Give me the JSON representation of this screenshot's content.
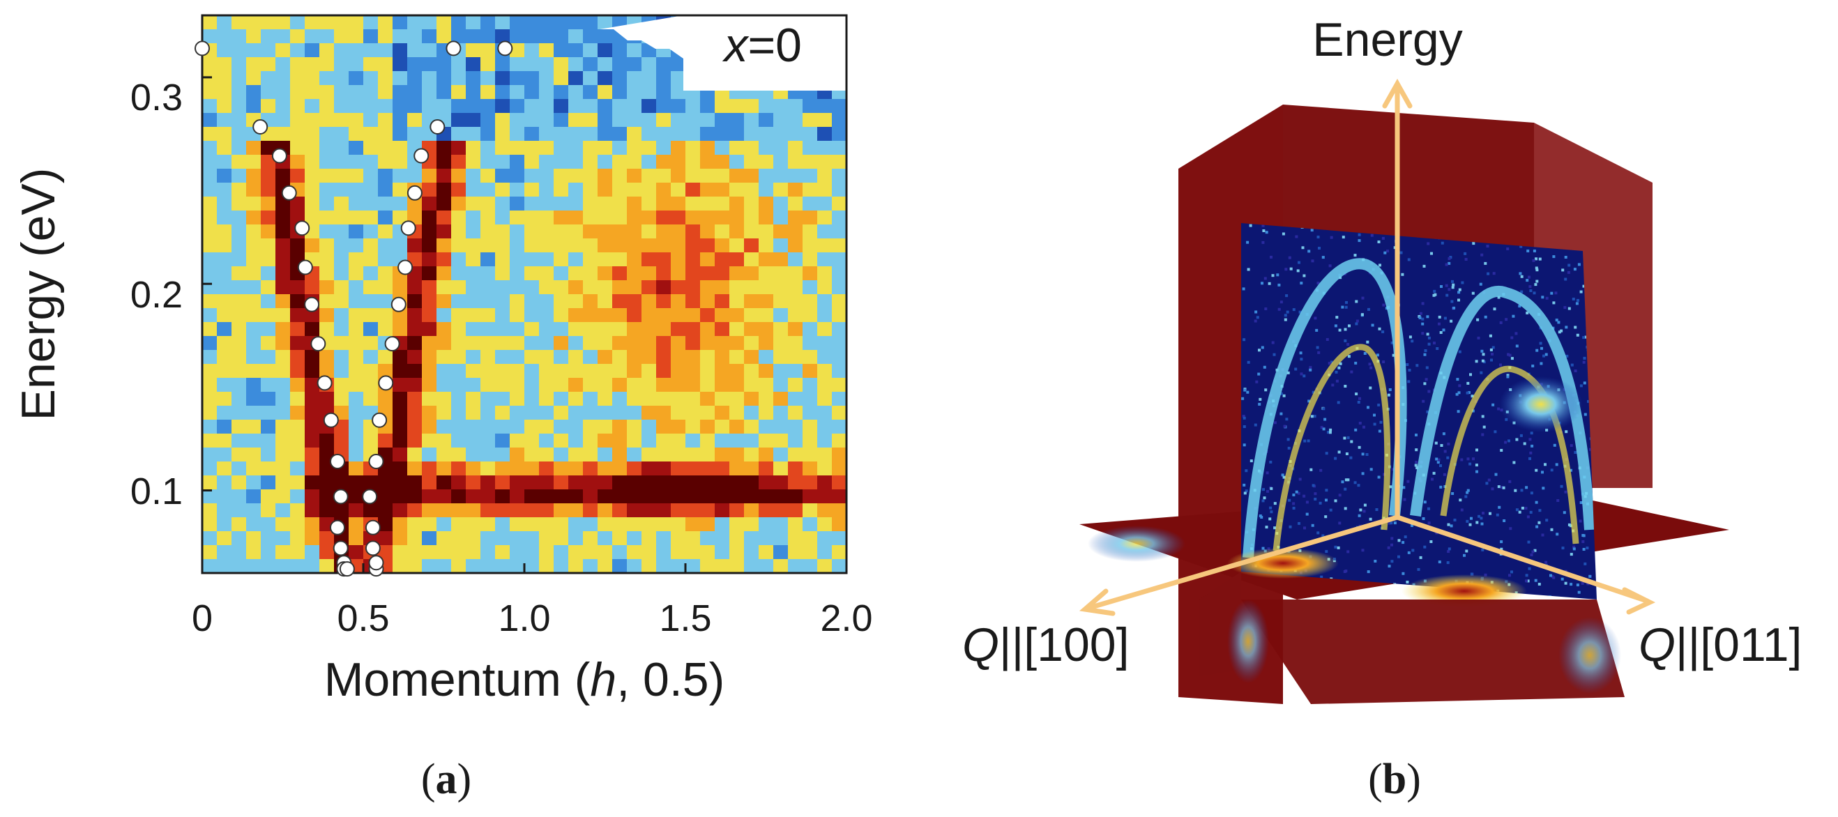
{
  "panel_a": {
    "inset_label": {
      "var": "x",
      "rest": "=0"
    },
    "ylabel": "Energy (eV)",
    "xlabel": {
      "prefix": "Momentum (",
      "var": "h",
      "suffix": ", 0.5)"
    },
    "x_ticks": [
      "0",
      "0.5",
      "1.0",
      "1.5",
      "2.0"
    ],
    "y_ticks": [
      "0.3",
      "0.2",
      "0.1"
    ],
    "caption": {
      "open": "(",
      "letter": "a",
      "close": ")"
    }
  },
  "panel_b": {
    "axis_energy": "Energy",
    "axis_q100": {
      "var": "Q",
      "rest": "||[100]"
    },
    "axis_q011": {
      "var": "Q",
      "rest": "||[011]"
    },
    "caption": {
      "open": "(",
      "letter": "b",
      "close": ")"
    }
  },
  "chart_data": {
    "type": "heatmap",
    "xlim": [
      0,
      2.0
    ],
    "ylim": [
      0.06,
      0.33
    ],
    "colormap": [
      "#00007f",
      "#1e50b4",
      "#3c8cdc",
      "#78c8ea",
      "#f0e04a",
      "#f5a623",
      "#e2461e",
      "#a01010",
      "#5a0000"
    ],
    "features": [
      {
        "name": "",
        "type": "band",
        "energy": 0.1,
        "x_range": [
          0.4,
          2.0
        ],
        "peak_x": 1.45
      }
    ],
    "dispersion_points": {
      "x": [
        0.0,
        0.18,
        0.24,
        0.27,
        0.31,
        0.32,
        0.34,
        0.36,
        0.38,
        0.4,
        0.42,
        0.43,
        0.42,
        0.43,
        0.44,
        0.44,
        0.45,
        0.54,
        0.54,
        0.53,
        0.53,
        0.52,
        0.54,
        0.55,
        0.57,
        0.59,
        0.61,
        0.63,
        0.64,
        0.66,
        0.68,
        0.73,
        0.78,
        0.94
      ],
      "y": [
        0.314,
        0.276,
        0.262,
        0.244,
        0.227,
        0.208,
        0.19,
        0.171,
        0.152,
        0.134,
        0.114,
        0.097,
        0.082,
        0.072,
        0.065,
        0.062,
        0.062,
        0.062,
        0.065,
        0.072,
        0.082,
        0.097,
        0.114,
        0.134,
        0.152,
        0.171,
        0.19,
        0.208,
        0.227,
        0.244,
        0.262,
        0.276,
        0.314,
        0.314
      ]
    }
  }
}
